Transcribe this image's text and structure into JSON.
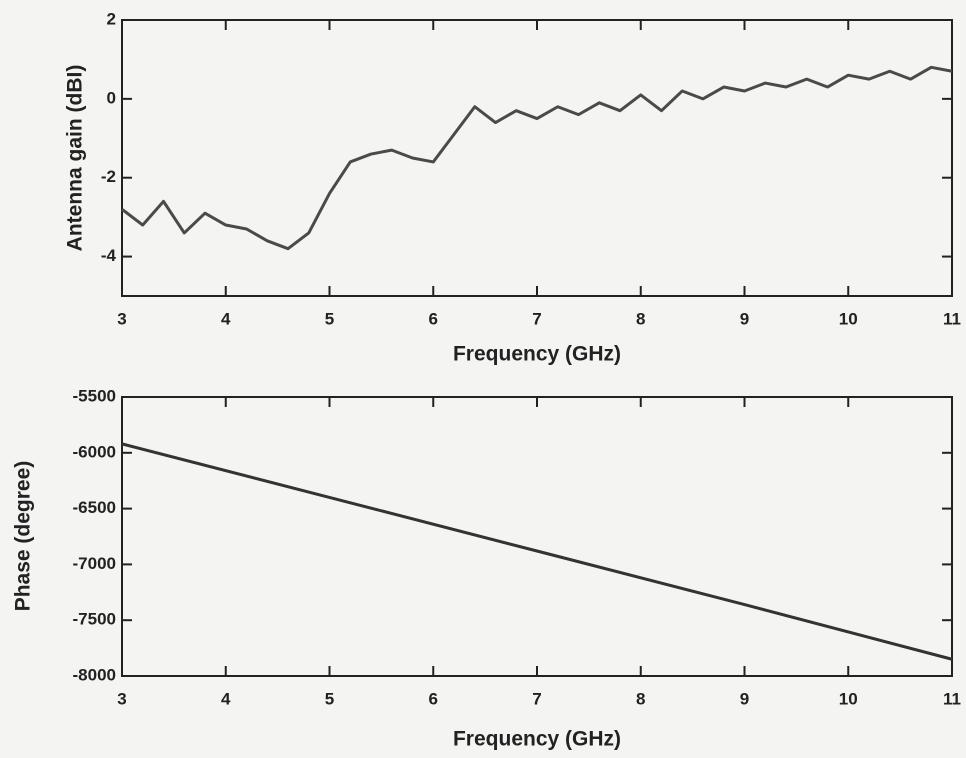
{
  "chart_data": [
    {
      "type": "line",
      "x_label": "Frequency (GHz)",
      "y_label": "Antenna gain (dBI)",
      "xlim": [
        3,
        11
      ],
      "xticks": [
        3,
        4,
        5,
        6,
        7,
        8,
        9,
        10,
        11
      ],
      "ylim": [
        -5,
        2
      ],
      "yticks": [
        -4,
        -2,
        0,
        2
      ],
      "grid": false,
      "x": [
        3.0,
        3.2,
        3.4,
        3.6,
        3.8,
        4.0,
        4.2,
        4.4,
        4.6,
        4.8,
        5.0,
        5.2,
        5.4,
        5.6,
        5.8,
        6.0,
        6.2,
        6.4,
        6.6,
        6.8,
        7.0,
        7.2,
        7.4,
        7.6,
        7.8,
        8.0,
        8.2,
        8.4,
        8.6,
        8.8,
        9.0,
        9.2,
        9.4,
        9.6,
        9.8,
        10.0,
        10.2,
        10.4,
        10.6,
        10.8,
        11.0
      ],
      "series": [
        {
          "color": "#4a4a4a",
          "values": [
            -2.8,
            -3.2,
            -2.6,
            -3.4,
            -2.9,
            -3.2,
            -3.3,
            -3.6,
            -3.8,
            -3.4,
            -2.4,
            -1.6,
            -1.4,
            -1.3,
            -1.5,
            -1.6,
            -0.9,
            -0.2,
            -0.6,
            -0.3,
            -0.5,
            -0.2,
            -0.4,
            -0.1,
            -0.3,
            0.1,
            -0.3,
            0.2,
            0.0,
            0.3,
            0.2,
            0.4,
            0.3,
            0.5,
            0.3,
            0.6,
            0.5,
            0.7,
            0.5,
            0.8,
            0.7
          ]
        }
      ]
    },
    {
      "type": "line",
      "x_label": "Frequency (GHz)",
      "y_label": "Phase (degree)",
      "xlim": [
        3,
        11
      ],
      "xticks": [
        3,
        4,
        5,
        6,
        7,
        8,
        9,
        10,
        11
      ],
      "ylim": [
        -8000,
        -5500
      ],
      "yticks": [
        -8000,
        -7500,
        -7000,
        -6500,
        -6000,
        -5500
      ],
      "grid": false,
      "x": [
        3,
        5,
        7,
        9,
        11
      ],
      "series": [
        {
          "color": "#333333",
          "values": [
            -5920,
            -6400,
            -6880,
            -7360,
            -7850
          ]
        }
      ]
    }
  ]
}
